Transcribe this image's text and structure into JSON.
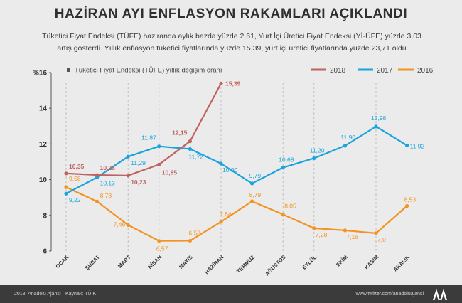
{
  "header": {
    "title": "HAZİRAN AYI ENFLASYON RAKAMLARI AÇIKLANDI",
    "subtitle": "Tüketici Fiyat Endeksi (TÜFE) haziranda aylık bazda yüzde 2,61, Yurt İçi Üretici Fiyat Endeksi (Yİ-ÜFE) yüzde 3,03 artış gösterdi. Yıllık enflasyon tüketici fiyatlarında yüzde 15,39, yurt içi üretici fiyatlarında yüzde 23,71 oldu"
  },
  "chart_data": {
    "type": "line",
    "ylabel": "%16",
    "legend_note": "Tüketici Fiyat Endeksi (TÜFE) yıllık değişim oranı",
    "categories": [
      "OCAK",
      "ŞUBAT",
      "MART",
      "NİSAN",
      "MAYIS",
      "HAZİRAN",
      "TEMMUZ",
      "AĞUSTOS",
      "EYLÜL",
      "EKİM",
      "KASIM",
      "ARALIK"
    ],
    "ylim": [
      6,
      16
    ],
    "yticks": [
      "6",
      "8",
      "10",
      "12",
      "14",
      "%16"
    ],
    "yticks_values": [
      6,
      8,
      10,
      12,
      14,
      16
    ],
    "legend_position": "top-right",
    "grid": "vertical dashed lines",
    "series": [
      {
        "name": "2018",
        "color": "#c0625f",
        "values": [
          10.35,
          10.26,
          10.23,
          10.85,
          12.15,
          15.39,
          null,
          null,
          null,
          null,
          null,
          null
        ],
        "labels": [
          "10,35",
          "10,26",
          "10,23",
          "10,85",
          "12,15",
          "15,39",
          "",
          "",
          "",
          "",
          "",
          ""
        ]
      },
      {
        "name": "2017",
        "color": "#1aa3dc",
        "values": [
          9.22,
          10.13,
          11.29,
          11.87,
          11.72,
          10.9,
          9.79,
          10.68,
          11.2,
          11.9,
          12.98,
          11.92
        ],
        "labels": [
          "9,22",
          "10,13",
          "11,29",
          "11,87",
          "11,72",
          "10,90",
          "9,79",
          "10,68",
          "11,20",
          "11,90",
          "12,98",
          "11,92"
        ]
      },
      {
        "name": "2016",
        "color": "#f39322",
        "values": [
          9.58,
          8.78,
          7.46,
          6.57,
          6.58,
          7.64,
          8.79,
          8.05,
          7.28,
          7.16,
          7.0,
          8.53
        ],
        "labels": [
          "9,58",
          "8,78",
          "7,46",
          "6,57",
          "6,58",
          "7,64",
          "8,79",
          "8,05",
          "7,28",
          "7,16",
          "7,0",
          "8,53"
        ]
      }
    ]
  },
  "footer": {
    "copyright": "2018, Anadolu Ajansı",
    "source": "Kaynak: TÜİK",
    "social": "www.twitter.com/anadoluajansi"
  }
}
